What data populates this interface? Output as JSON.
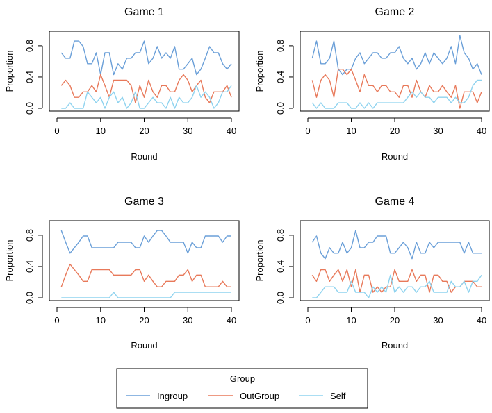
{
  "legend": {
    "title": "Group",
    "items": [
      {
        "label": "Ingroup",
        "color": "#6A9FD8"
      },
      {
        "label": "OutGroup",
        "color": "#E8795A"
      },
      {
        "label": "Self",
        "color": "#8FD3EF"
      }
    ]
  },
  "chart_data": [
    {
      "type": "line",
      "title": "Game 1",
      "xlabel": "Round",
      "ylabel": "Proportion",
      "xlim": [
        1,
        40
      ],
      "ylim": [
        0,
        0.95
      ],
      "xticks": [
        "0",
        "10",
        "20",
        "30",
        "40"
      ],
      "yticks": [
        "0.0",
        "0.4",
        "0.8"
      ],
      "x": [
        1,
        2,
        3,
        4,
        5,
        6,
        7,
        8,
        9,
        10,
        11,
        12,
        13,
        14,
        15,
        16,
        17,
        18,
        19,
        20,
        21,
        22,
        23,
        24,
        25,
        26,
        27,
        28,
        29,
        30,
        31,
        32,
        33,
        34,
        35,
        36,
        37,
        38,
        39,
        40
      ],
      "series": [
        {
          "name": "Ingroup",
          "values": [
            0.71,
            0.64,
            0.64,
            0.86,
            0.86,
            0.79,
            0.57,
            0.57,
            0.71,
            0.43,
            0.71,
            0.71,
            0.43,
            0.57,
            0.5,
            0.64,
            0.64,
            0.71,
            0.71,
            0.86,
            0.57,
            0.64,
            0.79,
            0.64,
            0.71,
            0.64,
            0.79,
            0.5,
            0.5,
            0.57,
            0.64,
            0.43,
            0.5,
            0.64,
            0.79,
            0.71,
            0.71,
            0.57,
            0.5,
            0.57
          ]
        },
        {
          "name": "OutGroup",
          "values": [
            0.29,
            0.36,
            0.29,
            0.14,
            0.14,
            0.21,
            0.21,
            0.29,
            0.21,
            0.43,
            0.29,
            0.14,
            0.36,
            0.36,
            0.36,
            0.36,
            0.29,
            0.07,
            0.29,
            0.14,
            0.36,
            0.21,
            0.14,
            0.29,
            0.29,
            0.21,
            0.21,
            0.36,
            0.43,
            0.36,
            0.21,
            0.29,
            0.36,
            0.14,
            0.07,
            0.21,
            0.21,
            0.21,
            0.29,
            0.14
          ]
        },
        {
          "name": "Self",
          "values": [
            0.0,
            0.0,
            0.07,
            0.0,
            0.0,
            0.0,
            0.21,
            0.14,
            0.07,
            0.14,
            0.0,
            0.14,
            0.21,
            0.07,
            0.14,
            0.0,
            0.07,
            0.21,
            0.0,
            0.0,
            0.07,
            0.14,
            0.07,
            0.07,
            0.0,
            0.14,
            0.0,
            0.14,
            0.07,
            0.07,
            0.14,
            0.29,
            0.14,
            0.21,
            0.14,
            0.0,
            0.07,
            0.21,
            0.21,
            0.29
          ]
        }
      ]
    },
    {
      "type": "line",
      "title": "Game 2",
      "xlabel": "Round",
      "ylabel": "Proportion",
      "xlim": [
        1,
        40
      ],
      "ylim": [
        0,
        0.95
      ],
      "xticks": [
        "0",
        "10",
        "20",
        "30",
        "40"
      ],
      "yticks": [
        "0.0",
        "0.4",
        "0.8"
      ],
      "x": [
        1,
        2,
        3,
        4,
        5,
        6,
        7,
        8,
        9,
        10,
        11,
        12,
        13,
        14,
        15,
        16,
        17,
        18,
        19,
        20,
        21,
        22,
        23,
        24,
        25,
        26,
        27,
        28,
        29,
        30,
        31,
        32,
        33,
        34,
        35,
        36,
        37,
        38,
        39,
        40
      ],
      "series": [
        {
          "name": "Ingroup",
          "values": [
            0.64,
            0.86,
            0.57,
            0.57,
            0.64,
            0.86,
            0.5,
            0.43,
            0.5,
            0.5,
            0.64,
            0.71,
            0.57,
            0.64,
            0.71,
            0.71,
            0.64,
            0.64,
            0.71,
            0.71,
            0.79,
            0.64,
            0.57,
            0.64,
            0.5,
            0.57,
            0.71,
            0.57,
            0.71,
            0.64,
            0.57,
            0.64,
            0.79,
            0.57,
            0.93,
            0.71,
            0.64,
            0.5,
            0.57,
            0.43
          ]
        },
        {
          "name": "OutGroup",
          "values": [
            0.36,
            0.14,
            0.36,
            0.43,
            0.36,
            0.14,
            0.5,
            0.5,
            0.43,
            0.5,
            0.36,
            0.21,
            0.43,
            0.29,
            0.29,
            0.21,
            0.29,
            0.29,
            0.21,
            0.21,
            0.14,
            0.29,
            0.29,
            0.14,
            0.36,
            0.21,
            0.14,
            0.29,
            0.21,
            0.21,
            0.29,
            0.21,
            0.14,
            0.29,
            0.0,
            0.21,
            0.21,
            0.21,
            0.07,
            0.21
          ]
        },
        {
          "name": "Self",
          "values": [
            0.07,
            0.0,
            0.07,
            0.0,
            0.0,
            0.0,
            0.07,
            0.07,
            0.07,
            0.0,
            0.0,
            0.07,
            0.0,
            0.07,
            0.0,
            0.07,
            0.07,
            0.07,
            0.07,
            0.07,
            0.07,
            0.07,
            0.14,
            0.21,
            0.14,
            0.21,
            0.14,
            0.14,
            0.07,
            0.14,
            0.14,
            0.14,
            0.07,
            0.14,
            0.07,
            0.07,
            0.14,
            0.29,
            0.36,
            0.36
          ]
        }
      ]
    },
    {
      "type": "line",
      "title": "Game 3",
      "xlabel": "Round",
      "ylabel": "Proportion",
      "xlim": [
        1,
        40
      ],
      "ylim": [
        0,
        0.95
      ],
      "xticks": [
        "0",
        "10",
        "20",
        "30",
        "40"
      ],
      "yticks": [
        "0.0",
        "0.4",
        "0.8"
      ],
      "x": [
        1,
        2,
        3,
        4,
        5,
        6,
        7,
        8,
        9,
        10,
        11,
        12,
        13,
        14,
        15,
        16,
        17,
        18,
        19,
        20,
        21,
        22,
        23,
        24,
        25,
        26,
        27,
        28,
        29,
        30,
        31,
        32,
        33,
        34,
        35,
        36,
        37,
        38,
        39,
        40
      ],
      "series": [
        {
          "name": "Ingroup",
          "values": [
            0.86,
            0.71,
            0.57,
            0.64,
            0.71,
            0.79,
            0.79,
            0.64,
            0.64,
            0.64,
            0.64,
            0.64,
            0.64,
            0.71,
            0.71,
            0.71,
            0.71,
            0.64,
            0.64,
            0.79,
            0.71,
            0.79,
            0.86,
            0.86,
            0.79,
            0.71,
            0.71,
            0.71,
            0.71,
            0.57,
            0.71,
            0.64,
            0.64,
            0.79,
            0.79,
            0.79,
            0.79,
            0.71,
            0.79,
            0.79
          ]
        },
        {
          "name": "OutGroup",
          "values": [
            0.14,
            0.29,
            0.43,
            0.36,
            0.29,
            0.21,
            0.21,
            0.36,
            0.36,
            0.36,
            0.36,
            0.36,
            0.29,
            0.29,
            0.29,
            0.29,
            0.29,
            0.36,
            0.36,
            0.21,
            0.29,
            0.21,
            0.14,
            0.14,
            0.21,
            0.21,
            0.21,
            0.29,
            0.29,
            0.36,
            0.21,
            0.29,
            0.29,
            0.14,
            0.14,
            0.14,
            0.14,
            0.21,
            0.14,
            0.14
          ]
        },
        {
          "name": "Self",
          "values": [
            0.0,
            0.0,
            0.0,
            0.0,
            0.0,
            0.0,
            0.0,
            0.0,
            0.0,
            0.0,
            0.0,
            0.0,
            0.07,
            0.0,
            0.0,
            0.0,
            0.0,
            0.0,
            0.0,
            0.0,
            0.0,
            0.0,
            0.0,
            0.0,
            0.0,
            0.0,
            0.07,
            0.07,
            0.07,
            0.07,
            0.07,
            0.07,
            0.07,
            0.07,
            0.07,
            0.07,
            0.07,
            0.07,
            0.07,
            0.07
          ]
        }
      ]
    },
    {
      "type": "line",
      "title": "Game 4",
      "xlabel": "Round",
      "ylabel": "Proportion",
      "xlim": [
        1,
        40
      ],
      "ylim": [
        0,
        0.95
      ],
      "xticks": [
        "0",
        "10",
        "20",
        "30",
        "40"
      ],
      "yticks": [
        "0.0",
        "0.4",
        "0.8"
      ],
      "x": [
        1,
        2,
        3,
        4,
        5,
        6,
        7,
        8,
        9,
        10,
        11,
        12,
        13,
        14,
        15,
        16,
        17,
        18,
        19,
        20,
        21,
        22,
        23,
        24,
        25,
        26,
        27,
        28,
        29,
        30,
        31,
        32,
        33,
        34,
        35,
        36,
        37,
        38,
        39,
        40
      ],
      "series": [
        {
          "name": "Ingroup",
          "values": [
            0.71,
            0.79,
            0.57,
            0.5,
            0.64,
            0.57,
            0.57,
            0.71,
            0.57,
            0.64,
            0.86,
            0.64,
            0.64,
            0.71,
            0.71,
            0.79,
            0.79,
            0.79,
            0.57,
            0.57,
            0.64,
            0.71,
            0.64,
            0.5,
            0.71,
            0.57,
            0.57,
            0.71,
            0.64,
            0.71,
            0.71,
            0.71,
            0.71,
            0.71,
            0.71,
            0.57,
            0.71,
            0.57,
            0.57,
            0.57
          ]
        },
        {
          "name": "OutGroup",
          "values": [
            0.29,
            0.21,
            0.36,
            0.36,
            0.21,
            0.29,
            0.36,
            0.21,
            0.36,
            0.14,
            0.36,
            0.07,
            0.29,
            0.29,
            0.07,
            0.14,
            0.07,
            0.14,
            0.14,
            0.36,
            0.21,
            0.21,
            0.21,
            0.36,
            0.21,
            0.29,
            0.29,
            0.07,
            0.29,
            0.29,
            0.21,
            0.21,
            0.07,
            0.14,
            0.14,
            0.21,
            0.21,
            0.21,
            0.14,
            0.14
          ]
        },
        {
          "name": "Self",
          "values": [
            0.0,
            0.0,
            0.07,
            0.14,
            0.14,
            0.14,
            0.07,
            0.07,
            0.07,
            0.21,
            0.07,
            0.07,
            0.07,
            0.0,
            0.14,
            0.07,
            0.14,
            0.07,
            0.29,
            0.07,
            0.14,
            0.07,
            0.14,
            0.14,
            0.07,
            0.14,
            0.14,
            0.21,
            0.07,
            0.07,
            0.07,
            0.07,
            0.21,
            0.14,
            0.14,
            0.21,
            0.07,
            0.21,
            0.21,
            0.29
          ]
        }
      ]
    }
  ]
}
